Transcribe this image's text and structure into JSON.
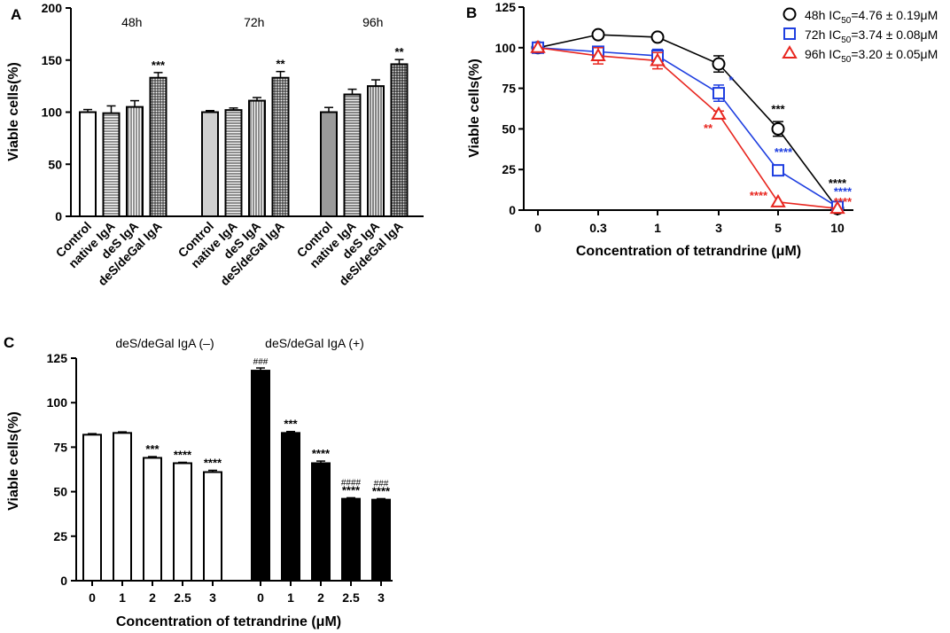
{
  "colors": {
    "black": "#000000",
    "blue": "#1f3fe0",
    "red": "#e8261f",
    "bar_light": "#d0d0d0",
    "bar_mid": "#9a9a9a",
    "bar_dark": "#555555"
  },
  "chart_data": [
    {
      "panel": "A",
      "type": "bar",
      "ylabel": "Viable cells(%)",
      "ylim": [
        0,
        200
      ],
      "yticks": [
        "0",
        "50",
        "100",
        "150",
        "200"
      ],
      "groups": [
        {
          "title": "48h",
          "bars": [
            {
              "label": "Control",
              "value": 100,
              "err": 2.5,
              "sig": "",
              "fill": "white",
              "pattern": "none"
            },
            {
              "label": "native IgA",
              "value": 99,
              "err": 7,
              "sig": "",
              "fill": "white",
              "pattern": "hlines"
            },
            {
              "label": "deS IgA",
              "value": 105,
              "err": 6,
              "sig": "",
              "fill": "white",
              "pattern": "vlines"
            },
            {
              "label": "deS/deGal IgA",
              "value": 133,
              "err": 5,
              "sig": "***",
              "fill": "white",
              "pattern": "grid"
            }
          ]
        },
        {
          "title": "72h",
          "bars": [
            {
              "label": "Control",
              "value": 100,
              "err": 1.5,
              "sig": "",
              "fill": "light",
              "pattern": "none"
            },
            {
              "label": "native IgA",
              "value": 102,
              "err": 2,
              "sig": "",
              "fill": "light",
              "pattern": "hlines"
            },
            {
              "label": "deS IgA",
              "value": 111,
              "err": 3,
              "sig": "",
              "fill": "light",
              "pattern": "vlines"
            },
            {
              "label": "deS/deGal IgA",
              "value": 133,
              "err": 6,
              "sig": "**",
              "fill": "light",
              "pattern": "grid"
            }
          ]
        },
        {
          "title": "96h",
          "bars": [
            {
              "label": "Control",
              "value": 100,
              "err": 4.5,
              "sig": "",
              "fill": "mid",
              "pattern": "none"
            },
            {
              "label": "native IgA",
              "value": 117,
              "err": 5,
              "sig": "",
              "fill": "mid",
              "pattern": "hlines"
            },
            {
              "label": "deS IgA",
              "value": 125,
              "err": 6,
              "sig": "",
              "fill": "mid",
              "pattern": "vlines"
            },
            {
              "label": "deS/deGal IgA",
              "value": 146,
              "err": 4.5,
              "sig": "**",
              "fill": "dark",
              "pattern": "grid"
            }
          ]
        }
      ]
    },
    {
      "panel": "B",
      "type": "line",
      "xlabel": "Concentration of tetrandrine (μM)",
      "ylabel": "Viable cells(%)",
      "x": [
        "0",
        "0.3",
        "1",
        "3",
        "5",
        "10"
      ],
      "ylim": [
        0,
        125
      ],
      "yticks": [
        "0",
        "25",
        "50",
        "75",
        "100",
        "125"
      ],
      "series": [
        {
          "name": "48h",
          "legend_prefix": "48h IC",
          "legend_sub": "50",
          "legend_suffix": "=4.76 ± 0.19μM",
          "color": "black",
          "marker": "circle",
          "values": [
            100,
            108,
            106.5,
            90,
            50,
            1
          ],
          "errors": [
            0,
            0,
            0,
            5,
            4.5,
            0
          ],
          "sig": [
            "",
            "",
            "",
            "",
            "***",
            "****"
          ]
        },
        {
          "name": "72h",
          "legend_prefix": "72h IC",
          "legend_sub": "50",
          "legend_suffix": "=3.74 ± 0.08μM",
          "color": "blue",
          "marker": "square",
          "values": [
            100,
            97.5,
            95,
            72,
            24.5,
            2
          ],
          "errors": [
            0,
            3,
            4,
            5,
            0,
            0
          ],
          "sig": [
            "",
            "",
            "",
            "*",
            "****",
            "****"
          ]
        },
        {
          "name": "96h",
          "legend_prefix": "96h IC",
          "legend_sub": "50",
          "legend_suffix": "=3.20 ± 0.05μM",
          "color": "red",
          "marker": "triangle",
          "values": [
            100,
            95,
            92,
            59,
            5,
            1
          ],
          "errors": [
            0,
            5,
            5,
            2,
            0,
            0
          ],
          "sig": [
            "",
            "",
            "",
            "**",
            "****",
            "****"
          ]
        }
      ]
    },
    {
      "panel": "C",
      "type": "bar",
      "xlabel": "Concentration of tetrandrine (μM)",
      "ylabel": "Viable cells(%)",
      "ylim": [
        0,
        125
      ],
      "yticks": [
        "0",
        "25",
        "50",
        "75",
        "100",
        "125"
      ],
      "groups": [
        {
          "title": "deS/deGal IgA (–)",
          "bars": [
            {
              "label": "0",
              "value": 82,
              "err": 0.6,
              "sig": "",
              "hash": "",
              "fill": "white"
            },
            {
              "label": "1",
              "value": 83,
              "err": 0.6,
              "sig": "",
              "hash": "",
              "fill": "white"
            },
            {
              "label": "2",
              "value": 69,
              "err": 0.7,
              "sig": "***",
              "hash": "",
              "fill": "white"
            },
            {
              "label": "2.5",
              "value": 66,
              "err": 0.5,
              "sig": "****",
              "hash": "",
              "fill": "white"
            },
            {
              "label": "3",
              "value": 61,
              "err": 1,
              "sig": "****",
              "hash": "",
              "fill": "white"
            }
          ]
        },
        {
          "title": "deS/deGal IgA (+)",
          "bars": [
            {
              "label": "0",
              "value": 118,
              "err": 1.5,
              "sig": "",
              "hash": "###",
              "fill": "black"
            },
            {
              "label": "1",
              "value": 83,
              "err": 0.8,
              "sig": "***",
              "hash": "",
              "fill": "black"
            },
            {
              "label": "2",
              "value": 66,
              "err": 1.2,
              "sig": "****",
              "hash": "",
              "fill": "black"
            },
            {
              "label": "2.5",
              "value": 46,
              "err": 0.6,
              "sig": "****",
              "hash": "####",
              "fill": "black"
            },
            {
              "label": "3",
              "value": 45.5,
              "err": 0.6,
              "sig": "****",
              "hash": "###",
              "fill": "black"
            }
          ]
        }
      ]
    }
  ]
}
